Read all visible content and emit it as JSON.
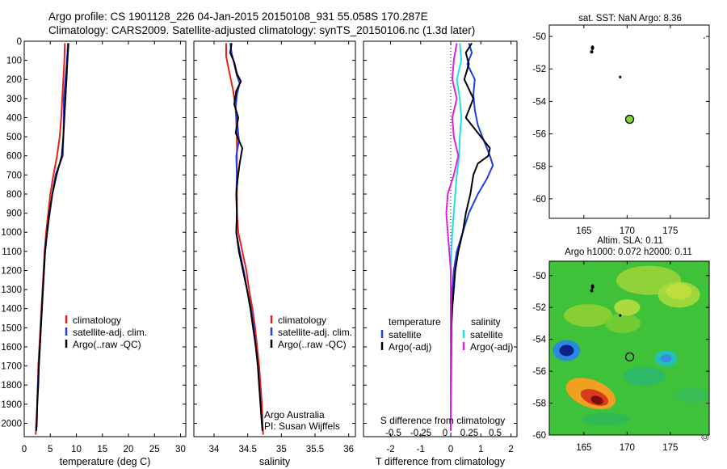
{
  "header": {
    "line1": "Argo profile: CS 1901128_226 04-Jan-2015 20150108_931 55.058S 170.287E",
    "line2": "Climatology: CARS2009. Satellite-adjusted climatology: synTS_20150106.nc (1.3d later)"
  },
  "credit": "©IMOS 20-Jan-2015 16:03:55",
  "colors": {
    "climatology": "#e8201a",
    "satellite": "#1e3fe0",
    "argo": "#000000",
    "sat_salinity": "#22e0e0",
    "argo_salinity": "#e020e0",
    "marker": "#7fd63a"
  },
  "chart_data": [
    {
      "type": "line",
      "xlabel": "temperature (deg C)",
      "ylabel": "",
      "xlim": [
        0,
        31
      ],
      "ylim": [
        2070,
        0
      ],
      "xticks": [
        0,
        5,
        10,
        15,
        20,
        25,
        30
      ],
      "yticks": [
        0,
        100,
        200,
        300,
        400,
        500,
        600,
        700,
        800,
        900,
        1000,
        1100,
        1200,
        1300,
        1400,
        1500,
        1600,
        1700,
        1800,
        1900,
        2000
      ],
      "legend": [
        "climatology",
        "satellite-adj. clim.",
        "Argo(..raw -QC)"
      ],
      "series": [
        {
          "name": "climatology",
          "color": "#e8201a",
          "points": [
            [
              7.8,
              10
            ],
            [
              7.7,
              100
            ],
            [
              7.5,
              200
            ],
            [
              7.3,
              300
            ],
            [
              7.1,
              400
            ],
            [
              6.8,
              500
            ],
            [
              6.3,
              600
            ],
            [
              5.6,
              700
            ],
            [
              5.0,
              800
            ],
            [
              4.6,
              900
            ],
            [
              4.2,
              1000
            ],
            [
              3.9,
              1100
            ],
            [
              3.7,
              1200
            ],
            [
              3.5,
              1300
            ],
            [
              3.3,
              1400
            ],
            [
              3.1,
              1500
            ],
            [
              2.9,
              1600
            ],
            [
              2.7,
              1700
            ],
            [
              2.6,
              1800
            ],
            [
              2.5,
              1900
            ],
            [
              2.3,
              2000
            ],
            [
              2.2,
              2060
            ]
          ]
        },
        {
          "name": "satellite-adj. clim.",
          "color": "#1e3fe0",
          "points": [
            [
              8.4,
              10
            ],
            [
              8.2,
              100
            ],
            [
              7.9,
              200
            ],
            [
              7.6,
              300
            ],
            [
              7.6,
              400
            ],
            [
              7.5,
              500
            ],
            [
              7.4,
              600
            ],
            [
              6.0,
              700
            ],
            [
              5.4,
              800
            ],
            [
              4.9,
              900
            ],
            [
              4.4,
              1000
            ],
            [
              4.0,
              1100
            ],
            [
              3.8,
              1200
            ],
            [
              3.6,
              1300
            ],
            [
              3.4,
              1400
            ],
            [
              3.2,
              1500
            ],
            [
              3.0,
              1600
            ],
            [
              2.8,
              1700
            ],
            [
              2.6,
              1800
            ],
            [
              2.5,
              1900
            ],
            [
              2.4,
              2000
            ],
            [
              2.3,
              2040
            ]
          ]
        },
        {
          "name": "Argo(..raw -QC)",
          "color": "#000000",
          "points": [
            [
              8.5,
              10
            ],
            [
              8.3,
              100
            ],
            [
              8.1,
              200
            ],
            [
              7.9,
              300
            ],
            [
              7.7,
              400
            ],
            [
              7.5,
              500
            ],
            [
              7.2,
              600
            ],
            [
              6.2,
              700
            ],
            [
              5.4,
              800
            ],
            [
              4.8,
              900
            ],
            [
              4.4,
              1000
            ],
            [
              4.0,
              1100
            ],
            [
              3.8,
              1200
            ],
            [
              3.6,
              1300
            ],
            [
              3.4,
              1400
            ],
            [
              3.2,
              1500
            ],
            [
              3.0,
              1600
            ],
            [
              2.8,
              1700
            ],
            [
              2.7,
              1800
            ],
            [
              2.5,
              1900
            ],
            [
              2.4,
              2000
            ],
            [
              2.3,
              2040
            ]
          ]
        }
      ]
    },
    {
      "type": "line",
      "xlabel": "salinity",
      "ylabel": "",
      "xlim": [
        33.7,
        36.1
      ],
      "ylim": [
        2070,
        0
      ],
      "xticks": [
        34,
        34.5,
        35,
        35.5,
        36
      ],
      "legend": [
        "climatology",
        "satellite-adj. clim.",
        "Argo(..raw -QC)"
      ],
      "annotation": [
        "Argo Australia",
        "PI: Susan Wijffels"
      ],
      "series": [
        {
          "name": "climatology",
          "color": "#e8201a",
          "points": [
            [
              34.18,
              10
            ],
            [
              34.18,
              80
            ],
            [
              34.22,
              150
            ],
            [
              34.28,
              250
            ],
            [
              34.32,
              350
            ],
            [
              34.34,
              500
            ],
            [
              34.34,
              700
            ],
            [
              34.34,
              900
            ],
            [
              34.36,
              1000
            ],
            [
              34.42,
              1100
            ],
            [
              34.48,
              1200
            ],
            [
              34.52,
              1300
            ],
            [
              34.57,
              1400
            ],
            [
              34.61,
              1500
            ],
            [
              34.64,
              1600
            ],
            [
              34.67,
              1700
            ],
            [
              34.69,
              1800
            ],
            [
              34.71,
              1900
            ],
            [
              34.72,
              2000
            ],
            [
              34.73,
              2060
            ]
          ]
        },
        {
          "name": "satellite-adj. clim.",
          "color": "#1e3fe0",
          "points": [
            [
              34.24,
              10
            ],
            [
              34.26,
              60
            ],
            [
              34.3,
              120
            ],
            [
              34.34,
              180
            ],
            [
              34.38,
              220
            ],
            [
              34.34,
              280
            ],
            [
              34.32,
              350
            ],
            [
              34.35,
              450
            ],
            [
              34.37,
              520
            ],
            [
              34.33,
              600
            ],
            [
              34.34,
              700
            ],
            [
              34.33,
              800
            ],
            [
              34.34,
              900
            ],
            [
              34.33,
              1000
            ],
            [
              34.38,
              1100
            ],
            [
              34.44,
              1200
            ],
            [
              34.49,
              1300
            ],
            [
              34.55,
              1400
            ],
            [
              34.59,
              1500
            ],
            [
              34.62,
              1600
            ],
            [
              34.65,
              1700
            ],
            [
              34.67,
              1800
            ],
            [
              34.69,
              1900
            ],
            [
              34.71,
              2000
            ],
            [
              34.72,
              2040
            ]
          ]
        },
        {
          "name": "Argo(..raw -QC)",
          "color": "#000000",
          "points": [
            [
              34.26,
              10
            ],
            [
              34.24,
              60
            ],
            [
              34.3,
              110
            ],
            [
              34.34,
              170
            ],
            [
              34.4,
              210
            ],
            [
              34.33,
              260
            ],
            [
              34.3,
              330
            ],
            [
              34.36,
              400
            ],
            [
              34.32,
              480
            ],
            [
              34.42,
              560
            ],
            [
              34.38,
              640
            ],
            [
              34.35,
              720
            ],
            [
              34.33,
              800
            ],
            [
              34.34,
              900
            ],
            [
              34.33,
              1000
            ],
            [
              34.37,
              1100
            ],
            [
              34.43,
              1200
            ],
            [
              34.49,
              1300
            ],
            [
              34.54,
              1400
            ],
            [
              34.58,
              1500
            ],
            [
              34.62,
              1600
            ],
            [
              34.65,
              1700
            ],
            [
              34.67,
              1800
            ],
            [
              34.69,
              1900
            ],
            [
              34.71,
              2000
            ],
            [
              34.72,
              2040
            ]
          ]
        }
      ]
    },
    {
      "type": "line",
      "xlabel": "T difference from climatology",
      "x2label": "S difference from climatology",
      "ylabel": "",
      "xlim": [
        -2.9,
        2.2
      ],
      "ylim": [
        2070,
        0
      ],
      "xticks": [
        -2,
        -1,
        0,
        1,
        2
      ],
      "x2ticks": [
        "-0.5",
        "-0.25",
        "0",
        "0.25",
        "0.5"
      ],
      "legend": {
        "temperature": "temperature",
        "salinity": "salinity",
        "items": [
          "satellite",
          "Argo(-adj)",
          "satellite",
          "Argo(-adj)"
        ]
      },
      "series": [
        {
          "name": "satellite",
          "color": "#1e3fe0",
          "points": [
            [
              0.6,
              10
            ],
            [
              0.7,
              60
            ],
            [
              0.55,
              120
            ],
            [
              0.8,
              200
            ],
            [
              0.75,
              280
            ],
            [
              0.8,
              360
            ],
            [
              0.9,
              440
            ],
            [
              1.1,
              520
            ],
            [
              1.3,
              600
            ],
            [
              1.4,
              650
            ],
            [
              1.2,
              720
            ],
            [
              0.9,
              800
            ],
            [
              0.6,
              900
            ],
            [
              0.4,
              1000
            ],
            [
              0.2,
              1100
            ],
            [
              0.1,
              1200
            ],
            [
              0.05,
              1300
            ],
            [
              0.02,
              1400
            ],
            [
              0,
              1500
            ],
            [
              0,
              2000
            ],
            [
              0,
              2040
            ]
          ]
        },
        {
          "name": "Argo(-adj)",
          "color": "#000000",
          "points": [
            [
              0.7,
              10
            ],
            [
              0.5,
              60
            ],
            [
              0.6,
              120
            ],
            [
              0.45,
              200
            ],
            [
              0.75,
              300
            ],
            [
              0.5,
              400
            ],
            [
              0.9,
              480
            ],
            [
              1.3,
              560
            ],
            [
              1.25,
              600
            ],
            [
              0.9,
              640
            ],
            [
              0.75,
              700
            ],
            [
              0.65,
              800
            ],
            [
              0.5,
              900
            ],
            [
              0.4,
              1000
            ],
            [
              0.25,
              1100
            ],
            [
              0.15,
              1200
            ],
            [
              0.1,
              1300
            ],
            [
              0.05,
              1400
            ],
            [
              0.02,
              1500
            ],
            [
              0,
              2000
            ],
            [
              0,
              2040
            ]
          ]
        },
        {
          "name": "satellite",
          "color": "#22e0e0",
          "points": [
            [
              0.3,
              10
            ],
            [
              0.35,
              100
            ],
            [
              0.2,
              200
            ],
            [
              0.3,
              300
            ],
            [
              0.35,
              400
            ],
            [
              0.3,
              500
            ],
            [
              0.28,
              600
            ],
            [
              0.2,
              700
            ],
            [
              0.15,
              800
            ],
            [
              0.1,
              900
            ],
            [
              0.05,
              1000
            ],
            [
              0.02,
              1100
            ],
            [
              0,
              1200
            ],
            [
              0,
              2040
            ]
          ]
        },
        {
          "name": "Argo(-adj)",
          "color": "#e020e0",
          "points": [
            [
              0.2,
              10
            ],
            [
              0.1,
              100
            ],
            [
              0.05,
              200
            ],
            [
              0.2,
              300
            ],
            [
              0.05,
              400
            ],
            [
              0.1,
              500
            ],
            [
              0.25,
              600
            ],
            [
              0.1,
              700
            ],
            [
              -0.1,
              800
            ],
            [
              -0.15,
              900
            ],
            [
              -0.1,
              1000
            ],
            [
              -0.05,
              1100
            ],
            [
              0,
              1200
            ],
            [
              0,
              2040
            ]
          ]
        }
      ]
    },
    {
      "type": "scatter",
      "title": "sat. SST: NaN  Argo: 8.36",
      "xlim": [
        161,
        179.5
      ],
      "ylim": [
        -61.2,
        -49.3
      ],
      "xticks": [
        165,
        170,
        175
      ],
      "yticks": [
        -50,
        -52,
        -54,
        -56,
        -58,
        -60
      ],
      "points": [
        [
          166.0,
          -50.8
        ],
        [
          169.2,
          -52.5
        ],
        [
          170.3,
          -55.1
        ]
      ]
    },
    {
      "type": "heatmap",
      "title": "Altim. SLA: 0.11",
      "subtitle": "Argo h1000: 0.072  h2000: 0.11",
      "xlim": [
        161,
        179.5
      ],
      "ylim": [
        -60,
        -49.1
      ],
      "xticks": [
        165,
        170,
        175
      ],
      "yticks": [
        -50,
        -52,
        -54,
        -56,
        -58,
        -60
      ],
      "points": [
        [
          166.0,
          -50.8
        ],
        [
          169.2,
          -52.5
        ],
        [
          170.3,
          -55.1
        ]
      ],
      "features": [
        {
          "lon": 163.0,
          "lat": -54.7,
          "value": -0.8
        },
        {
          "lon": 165.8,
          "lat": -57.4,
          "value": 0.9
        },
        {
          "lon": 174.5,
          "lat": -55.2,
          "value": -0.4
        },
        {
          "lon": 170.0,
          "lat": -52.0,
          "value": 0.3
        },
        {
          "lon": 176.0,
          "lat": -51.0,
          "value": 0.3
        }
      ]
    }
  ]
}
